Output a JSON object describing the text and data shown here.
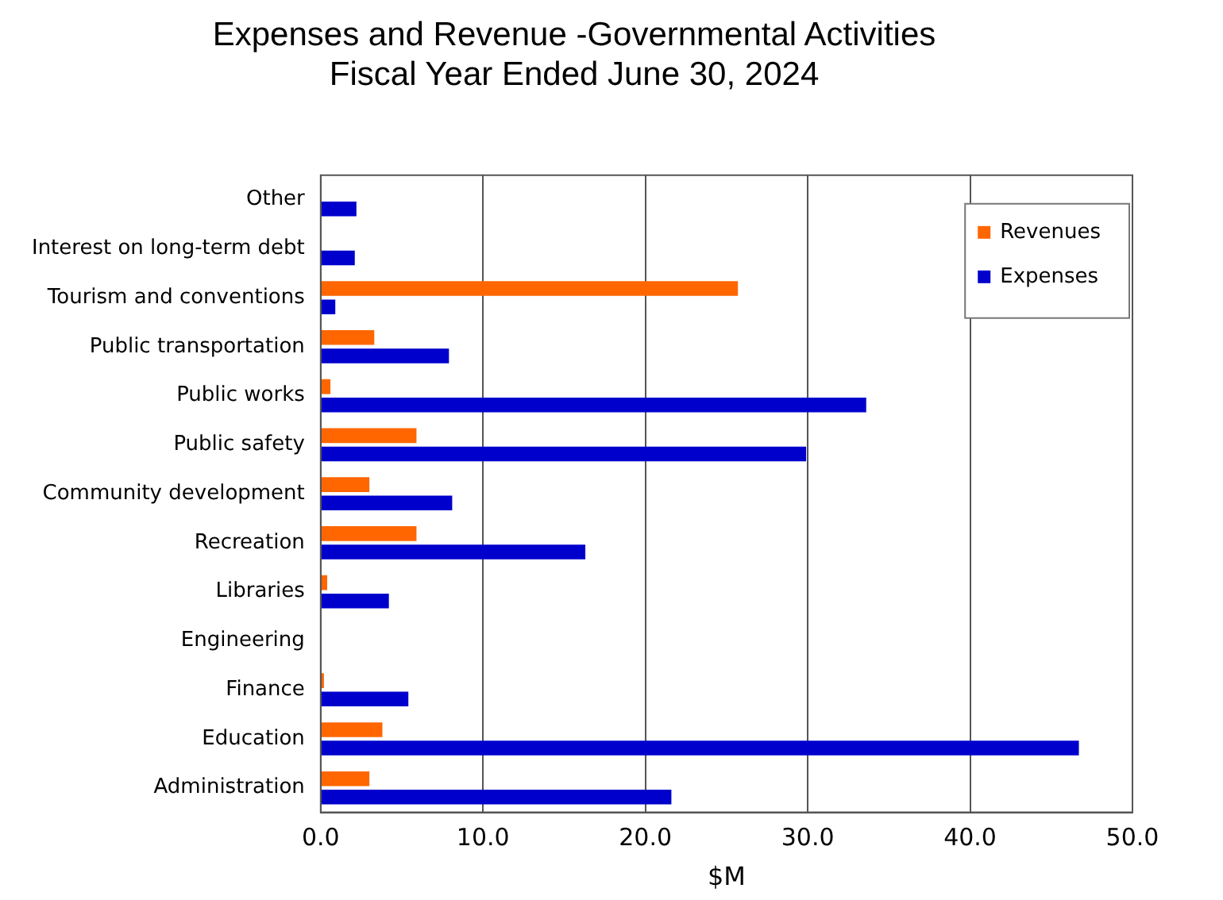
{
  "chart_data": {
    "type": "bar",
    "orientation": "horizontal",
    "title": "Expenses and Revenue -Governmental Activities\nFiscal Year Ended June 30, 2024",
    "xlabel": "$M",
    "categories": [
      "Other",
      "Interest on long-term debt",
      "Tourism and conventions",
      "Public transportation",
      "Public works",
      "Public safety",
      "Community development",
      "Recreation",
      "Libraries",
      "Engineering",
      "Finance",
      "Education",
      "Administration"
    ],
    "series": [
      {
        "name": "Revenues",
        "color": "#ff6600",
        "values": [
          null,
          null,
          25.7,
          3.3,
          0.6,
          5.9,
          3.0,
          5.9,
          0.4,
          null,
          0.2,
          3.8,
          3.0
        ]
      },
      {
        "name": "Expenses",
        "color": "#0000cc",
        "values": [
          2.2,
          2.1,
          0.9,
          7.9,
          33.6,
          29.9,
          8.1,
          16.3,
          4.2,
          null,
          5.4,
          46.7,
          21.6
        ]
      }
    ],
    "xlim": [
      0,
      50
    ],
    "xticks": [
      {
        "value": 0,
        "label": "0.0"
      },
      {
        "value": 10,
        "label": "10.0"
      },
      {
        "value": 20,
        "label": "20.0"
      },
      {
        "value": 30,
        "label": "30.0"
      },
      {
        "value": 40,
        "label": "40.0"
      },
      {
        "value": 50,
        "label": "50.0"
      }
    ],
    "grid": "x",
    "legend": "top right"
  }
}
